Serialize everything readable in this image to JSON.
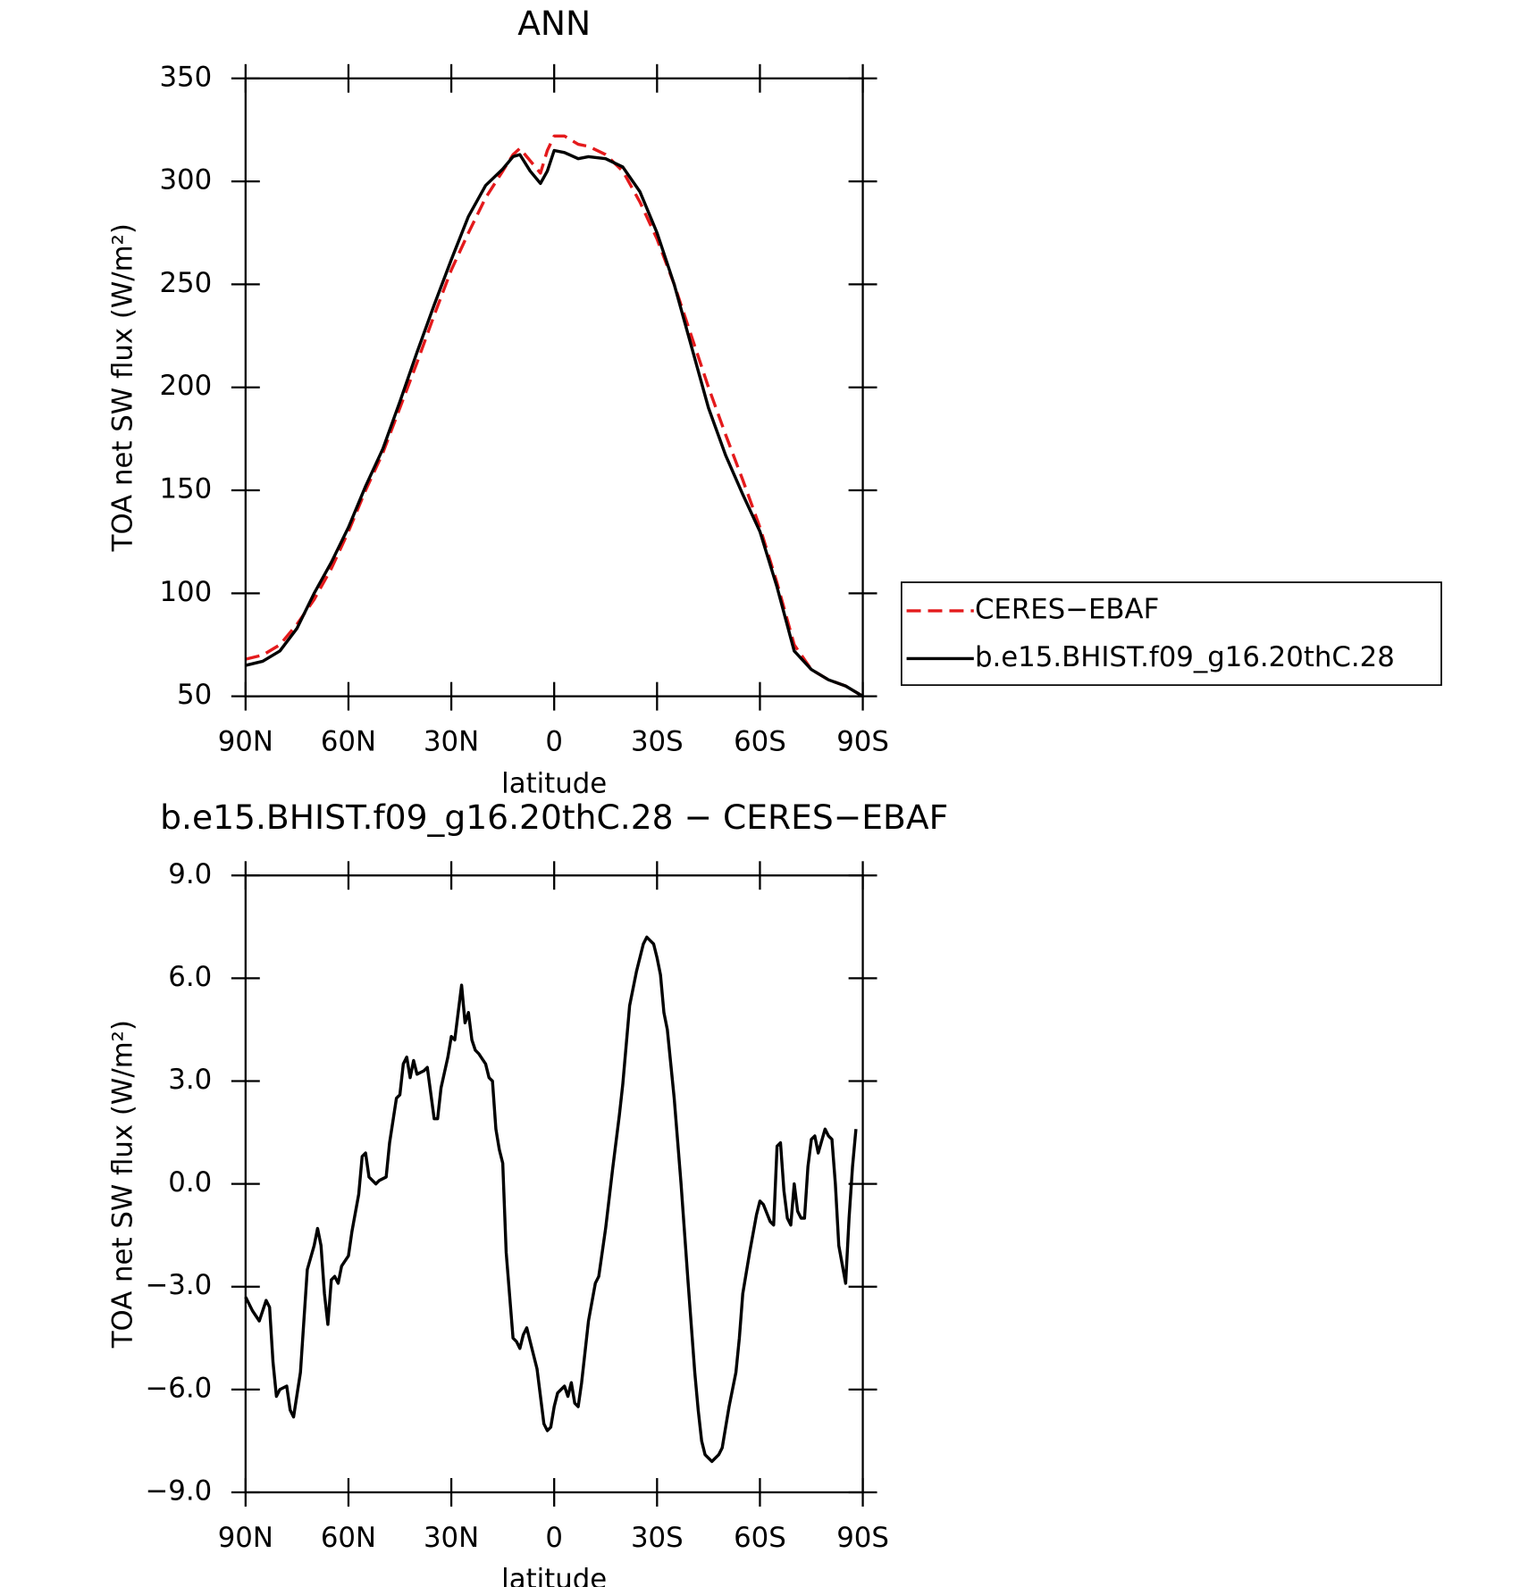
{
  "chart_data": [
    {
      "type": "line",
      "title": "ANN",
      "x_label": "latitude",
      "y_label": "TOA net SW flux (W/m²)",
      "x": [
        90,
        85,
        80,
        75,
        70,
        65,
        60,
        55,
        50,
        45,
        40,
        35,
        30,
        25,
        20,
        15,
        12,
        10,
        7,
        4,
        2,
        0,
        -3,
        -7,
        -10,
        -15,
        -20,
        -25,
        -30,
        -35,
        -40,
        -45,
        -50,
        -55,
        -60,
        -65,
        -70,
        -75,
        -80,
        -85,
        -90
      ],
      "series": [
        {
          "name": "CERES−EBAF",
          "color": "#e41a1c",
          "dashed": true,
          "values": [
            68,
            70,
            75,
            85,
            97,
            112,
            130,
            150,
            168,
            190,
            212,
            235,
            257,
            275,
            292,
            305,
            313,
            316,
            310,
            304,
            315,
            322,
            322,
            318,
            317,
            313,
            305,
            290,
            272,
            250,
            225,
            200,
            177,
            155,
            132,
            105,
            75,
            63,
            58,
            55,
            50
          ]
        },
        {
          "name": "b.e15.BHIST.f09_g16.20thC.28",
          "color": "#000000",
          "dashed": false,
          "values": [
            65,
            67,
            72,
            83,
            100,
            115,
            132,
            152,
            170,
            193,
            217,
            240,
            262,
            283,
            298,
            306,
            312,
            313,
            305,
            299,
            305,
            315,
            314,
            311,
            312,
            311,
            307,
            295,
            275,
            250,
            220,
            190,
            167,
            148,
            130,
            103,
            72,
            63,
            58,
            55,
            50
          ]
        }
      ],
      "xlim": [
        90,
        -90
      ],
      "xticks": [
        {
          "value": 90,
          "label": "90N"
        },
        {
          "value": 60,
          "label": "60N"
        },
        {
          "value": 30,
          "label": "30N"
        },
        0,
        {
          "value": -30,
          "label": "30S"
        },
        {
          "value": -60,
          "label": "60S"
        },
        {
          "value": -90,
          "label": "90S"
        }
      ],
      "ylim": [
        50,
        350
      ],
      "yticks": [
        50,
        100,
        150,
        200,
        250,
        300,
        350
      ],
      "grid": false,
      "legend": "right"
    },
    {
      "type": "line",
      "title": "b.e15.BHIST.f09_g16.20thC.28 − CERES−EBAF",
      "x_label": "latitude",
      "y_label": "TOA net SW flux (W/m²)",
      "x": [
        90,
        88,
        86,
        84,
        83,
        82,
        81,
        80,
        78,
        77,
        76,
        74,
        72,
        70,
        69,
        68,
        67,
        66,
        65,
        64,
        63,
        62,
        60,
        59,
        57,
        56,
        55,
        54,
        53,
        52,
        51,
        49,
        48,
        46,
        45,
        44,
        43,
        42,
        41,
        40,
        38,
        37,
        35,
        34,
        33,
        31,
        30,
        29,
        28,
        27,
        26,
        25,
        24,
        23,
        22,
        20,
        19,
        18,
        17,
        16,
        15,
        14,
        12,
        11,
        10,
        9,
        8,
        7,
        6,
        5,
        3,
        2,
        1,
        0,
        -1,
        -2,
        -3,
        -4,
        -5,
        -6,
        -7,
        -8,
        -10,
        -12,
        -13,
        -15,
        -17,
        -19,
        -20,
        -22,
        -24,
        -26,
        -27,
        -28,
        -29,
        -30,
        -31,
        -32,
        -33,
        -35,
        -37,
        -39,
        -41,
        -42,
        -43,
        -44,
        -46,
        -48,
        -49,
        -51,
        -53,
        -54,
        -55,
        -57,
        -59,
        -60,
        -61,
        -63,
        -64,
        -65,
        -66,
        -67,
        -68,
        -69,
        -70,
        -71,
        -72,
        -73,
        -74,
        -75,
        -76,
        -77,
        -79,
        -80,
        -81,
        -82,
        -83,
        -85,
        -86,
        -87,
        -88
      ],
      "values": [
        -3.3,
        -3.7,
        -4.0,
        -3.4,
        -3.6,
        -5.2,
        -6.2,
        -6.0,
        -5.9,
        -6.6,
        -6.8,
        -5.5,
        -2.5,
        -1.8,
        -1.3,
        -1.8,
        -3.2,
        -4.1,
        -2.8,
        -2.7,
        -2.9,
        -2.4,
        -2.1,
        -1.4,
        -0.3,
        0.8,
        0.9,
        0.2,
        0.1,
        0,
        0.1,
        0.2,
        1.2,
        2.5,
        2.6,
        3.5,
        3.7,
        3.1,
        3.6,
        3.2,
        3.3,
        3.4,
        1.9,
        1.9,
        2.8,
        3.7,
        4.3,
        4.2,
        5.0,
        5.8,
        4.7,
        5.0,
        4.2,
        3.9,
        3.8,
        3.5,
        3.1,
        3.0,
        1.6,
        1.0,
        0.6,
        -2.0,
        -4.5,
        -4.6,
        -4.8,
        -4.4,
        -4.2,
        -4.6,
        -5.0,
        -5.4,
        -7.0,
        -7.2,
        -7.1,
        -6.5,
        -6.1,
        -6.0,
        -5.9,
        -6.2,
        -5.8,
        -6.4,
        -6.5,
        -5.8,
        -4.0,
        -2.9,
        -2.7,
        -1.3,
        0.4,
        2.0,
        2.9,
        5.2,
        6.2,
        7.0,
        7.2,
        7.1,
        7.0,
        6.6,
        6.1,
        5.0,
        4.5,
        2.5,
        0,
        -2.8,
        -5.5,
        -6.6,
        -7.5,
        -7.9,
        -8.1,
        -7.9,
        -7.7,
        -6.5,
        -5.5,
        -4.5,
        -3.2,
        -2.0,
        -0.9,
        -0.5,
        -0.6,
        -1.1,
        -1.2,
        1.1,
        1.2,
        -0.2,
        -1.0,
        -1.2,
        0,
        -0.8,
        -1.0,
        -1.0,
        0.5,
        1.3,
        1.4,
        0.9,
        1.6,
        1.4,
        1.3,
        0,
        -1.8,
        -2.9,
        -1.0,
        0.5,
        1.6
      ],
      "color": "#000000",
      "xlim": [
        90,
        -90
      ],
      "xticks": [
        {
          "value": 90,
          "label": "90N"
        },
        {
          "value": 60,
          "label": "60N"
        },
        {
          "value": 30,
          "label": "30N"
        },
        0,
        {
          "value": -30,
          "label": "30S"
        },
        {
          "value": -60,
          "label": "60S"
        },
        {
          "value": -90,
          "label": "90S"
        }
      ],
      "ylim": [
        -9,
        9
      ],
      "yticks": [
        {
          "value": -9,
          "label": "−9.0"
        },
        {
          "value": -6,
          "label": "−6.0"
        },
        {
          "value": -3,
          "label": "−3.0"
        },
        {
          "value": 0,
          "label": "0.0"
        },
        {
          "value": 3,
          "label": "3.0"
        },
        {
          "value": 6,
          "label": "6.0"
        },
        {
          "value": 9,
          "label": "9.0"
        }
      ],
      "grid": false
    }
  ]
}
